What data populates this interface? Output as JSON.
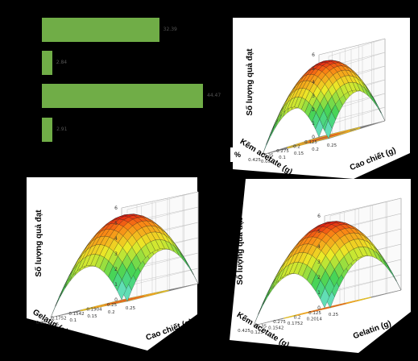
{
  "chart_data": [
    {
      "type": "bar",
      "orientation": "horizontal",
      "values": [
        32.39,
        2.84,
        44.47,
        2.91
      ],
      "data_labels": [
        "32.39",
        "2.84",
        "44.47",
        "2.91"
      ],
      "color": "#70ad47"
    },
    {
      "type": "surface",
      "zlabel": "Số lượng quả đạt",
      "xlabel": "Kẽm acetate (g)",
      "ylabel": "Cao chiết (g)",
      "x_ticks": [
        "0.125",
        "0.2",
        "0.275",
        "0.35",
        "0.425"
      ],
      "y_ticks": [
        "0.05",
        "0.1",
        "0.15",
        "0.2",
        "0.25"
      ],
      "z_ticks": [
        "0",
        "1",
        "2",
        "3",
        "4",
        "5",
        "6"
      ],
      "zlim": [
        0,
        6
      ],
      "extra_label": "%"
    },
    {
      "type": "surface",
      "zlabel": "Số lượng quả đạt",
      "xlabel": "Gelatin (g)",
      "ylabel": "Cao chiết (g)",
      "x_ticks": [
        "0.25",
        "0.1904",
        "0.1542",
        "0.1752",
        "0.25"
      ],
      "y_ticks": [
        "0.05",
        "0.1",
        "0.15",
        "0.2",
        "0.25"
      ],
      "z_ticks": [
        "0",
        "1",
        "2",
        "3",
        "4",
        "5",
        "6"
      ],
      "zlim": [
        0,
        6
      ]
    },
    {
      "type": "surface",
      "zlabel": "Số lượng quả đạt",
      "xlabel": "Kẽm acetate (g)",
      "ylabel": "Gelatin (g)",
      "x_ticks": [
        "0.125",
        "0.2",
        "0.275",
        "0.35",
        "0.425"
      ],
      "y_ticks": [
        "0.125",
        "0.1542",
        "0.1752",
        "0.2014",
        "0.25"
      ],
      "z_ticks": [
        "0",
        "1",
        "2",
        "3",
        "4",
        "5",
        "6"
      ],
      "zlim": [
        0,
        6
      ]
    }
  ]
}
